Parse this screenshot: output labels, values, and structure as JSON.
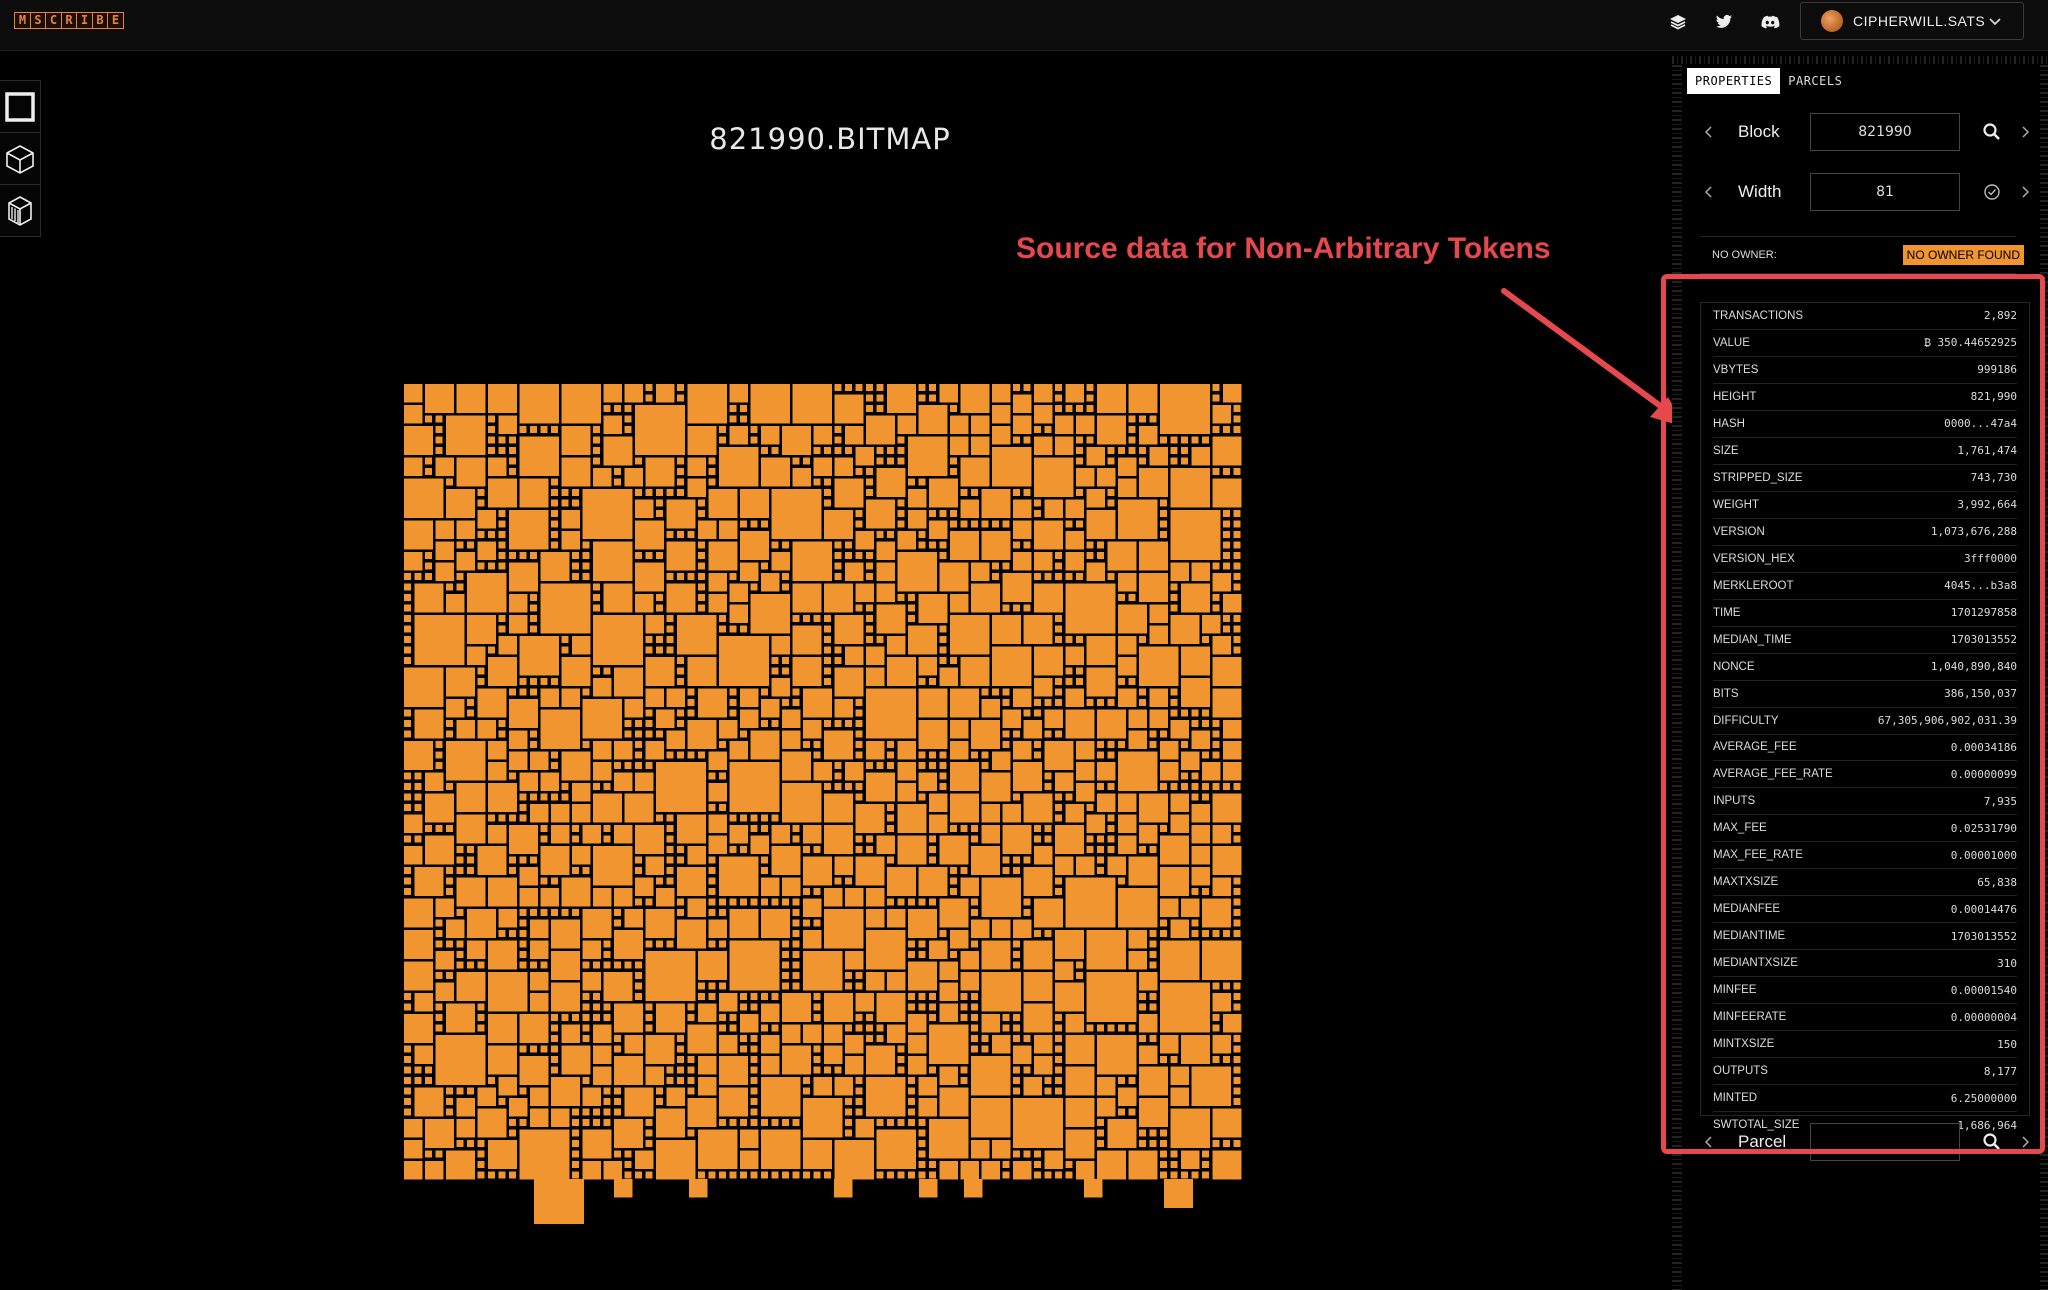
{
  "app": {
    "logo_letters": [
      "M",
      "S",
      "C",
      "R",
      "I",
      "B",
      "E"
    ],
    "brand_color": "#e8823a"
  },
  "header": {
    "icons": [
      "layers-icon",
      "twitter-icon",
      "discord-icon"
    ],
    "user": {
      "name": "CIPHERWILL.SATS"
    }
  },
  "toolbar": {
    "tools": [
      "square-tool-icon",
      "cube-tool-icon",
      "block-3d-icon"
    ]
  },
  "canvas": {
    "title": "821990.BITMAP",
    "tile_color": "#f0952f"
  },
  "annotation": {
    "text": "Source data for Non-Arbitrary Tokens",
    "color": "#e5484d"
  },
  "panel": {
    "tabs": [
      {
        "label": "PROPERTIES",
        "active": true
      },
      {
        "label": "PARCELS",
        "active": false
      }
    ],
    "block": {
      "label": "Block",
      "value": "821990"
    },
    "width": {
      "label": "Width",
      "value": "81"
    },
    "owner": {
      "key": "NO OWNER:",
      "badge": "NO OWNER FOUND"
    },
    "properties": [
      {
        "key": "TRANSACTIONS",
        "value": "2,892"
      },
      {
        "key": "VALUE",
        "value": "₿ 350.44652925"
      },
      {
        "key": "VBYTES",
        "value": "999186"
      },
      {
        "key": "HEIGHT",
        "value": "821,990"
      },
      {
        "key": "HASH",
        "value": "0000...47a4"
      },
      {
        "key": "SIZE",
        "value": "1,761,474"
      },
      {
        "key": "STRIPPED_SIZE",
        "value": "743,730"
      },
      {
        "key": "WEIGHT",
        "value": "3,992,664"
      },
      {
        "key": "VERSION",
        "value": "1,073,676,288"
      },
      {
        "key": "VERSION_HEX",
        "value": "3fff0000"
      },
      {
        "key": "MERKLEROOT",
        "value": "4045...b3a8"
      },
      {
        "key": "TIME",
        "value": "1701297858"
      },
      {
        "key": "MEDIAN_TIME",
        "value": "1703013552"
      },
      {
        "key": "NONCE",
        "value": "1,040,890,840"
      },
      {
        "key": "BITS",
        "value": "386,150,037"
      },
      {
        "key": "DIFFICULTY",
        "value": "67,305,906,902,031.39"
      },
      {
        "key": "AVERAGE_FEE",
        "value": "0.00034186"
      },
      {
        "key": "AVERAGE_FEE_RATE",
        "value": "0.00000099"
      },
      {
        "key": "INPUTS",
        "value": "7,935"
      },
      {
        "key": "MAX_FEE",
        "value": "0.02531790"
      },
      {
        "key": "MAX_FEE_RATE",
        "value": "0.00001000"
      },
      {
        "key": "MAXTXSIZE",
        "value": "65,838"
      },
      {
        "key": "MEDIANFEE",
        "value": "0.00014476"
      },
      {
        "key": "MEDIANTIME",
        "value": "1703013552"
      },
      {
        "key": "MEDIANTXSIZE",
        "value": "310"
      },
      {
        "key": "MINFEE",
        "value": "0.00001540"
      },
      {
        "key": "MINFEERATE",
        "value": "0.00000004"
      },
      {
        "key": "MINTXSIZE",
        "value": "150"
      },
      {
        "key": "OUTPUTS",
        "value": "8,177"
      },
      {
        "key": "MINTED",
        "value": "6.25000000"
      },
      {
        "key": "SWTOTAL_SIZE",
        "value": "1,686,964"
      }
    ],
    "parcel": {
      "label": "Parcel",
      "value": ""
    }
  }
}
